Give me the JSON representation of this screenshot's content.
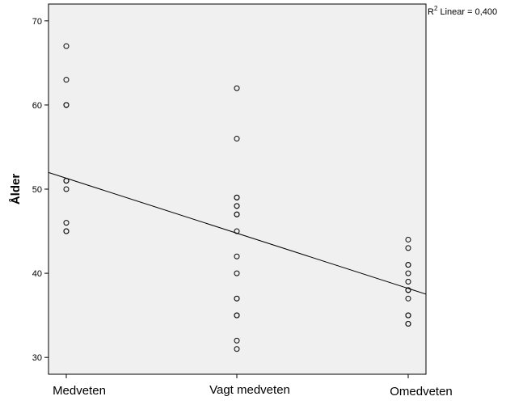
{
  "chart_data": {
    "type": "scatter",
    "ylabel": "Ålder",
    "xlabel": "",
    "categories": [
      "Medveten",
      "Vagt medveten",
      "Omedveten"
    ],
    "ylim": [
      28,
      72
    ],
    "yticks": [
      30,
      40,
      50,
      60,
      70
    ],
    "grid": false,
    "background_color": "#f0f0f0",
    "marker_color": "#000000",
    "fit_line_color": "#000000",
    "fit_label_prefix": "R",
    "fit_label_superscript": "2",
    "fit_label_text": " Linear = 0,400",
    "fit_line": {
      "at_first_category": 51.3,
      "at_last_category": 38.2
    },
    "points": [
      {
        "x": "Medveten",
        "y": 67
      },
      {
        "x": "Medveten",
        "y": 63
      },
      {
        "x": "Medveten",
        "y": 60
      },
      {
        "x": "Medveten",
        "y": 60
      },
      {
        "x": "Medveten",
        "y": 51
      },
      {
        "x": "Medveten",
        "y": 51
      },
      {
        "x": "Medveten",
        "y": 50
      },
      {
        "x": "Medveten",
        "y": 46
      },
      {
        "x": "Medveten",
        "y": 45
      },
      {
        "x": "Medveten",
        "y": 45
      },
      {
        "x": "Vagt medveten",
        "y": 62
      },
      {
        "x": "Vagt medveten",
        "y": 56
      },
      {
        "x": "Vagt medveten",
        "y": 49
      },
      {
        "x": "Vagt medveten",
        "y": 49
      },
      {
        "x": "Vagt medveten",
        "y": 48
      },
      {
        "x": "Vagt medveten",
        "y": 48
      },
      {
        "x": "Vagt medveten",
        "y": 47
      },
      {
        "x": "Vagt medveten",
        "y": 47
      },
      {
        "x": "Vagt medveten",
        "y": 45
      },
      {
        "x": "Vagt medveten",
        "y": 42
      },
      {
        "x": "Vagt medveten",
        "y": 40
      },
      {
        "x": "Vagt medveten",
        "y": 37
      },
      {
        "x": "Vagt medveten",
        "y": 37
      },
      {
        "x": "Vagt medveten",
        "y": 35
      },
      {
        "x": "Vagt medveten",
        "y": 35
      },
      {
        "x": "Vagt medveten",
        "y": 32
      },
      {
        "x": "Vagt medveten",
        "y": 31
      },
      {
        "x": "Omedveten",
        "y": 44
      },
      {
        "x": "Omedveten",
        "y": 43
      },
      {
        "x": "Omedveten",
        "y": 41
      },
      {
        "x": "Omedveten",
        "y": 41
      },
      {
        "x": "Omedveten",
        "y": 40
      },
      {
        "x": "Omedveten",
        "y": 39
      },
      {
        "x": "Omedveten",
        "y": 38
      },
      {
        "x": "Omedveten",
        "y": 38
      },
      {
        "x": "Omedveten",
        "y": 37
      },
      {
        "x": "Omedveten",
        "y": 35
      },
      {
        "x": "Omedveten",
        "y": 35
      },
      {
        "x": "Omedveten",
        "y": 34
      },
      {
        "x": "Omedveten",
        "y": 34
      }
    ]
  }
}
